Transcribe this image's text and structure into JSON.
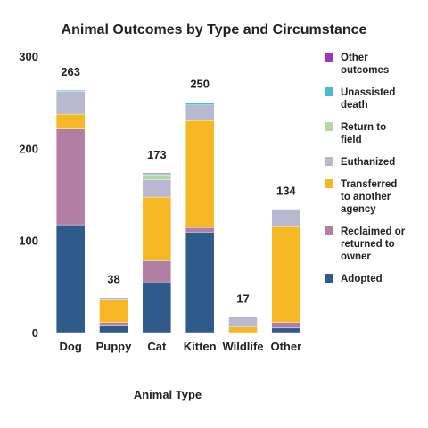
{
  "chart_data": {
    "type": "bar",
    "stacked": true,
    "title": "Animal Outcomes by Type and Circumstance",
    "xlabel": "Animal Type",
    "ylabel": "",
    "ylim": [
      0,
      300
    ],
    "yticks": [
      0,
      100,
      200,
      300
    ],
    "grid": false,
    "legend_position": "right",
    "categories": [
      "Dog",
      "Puppy",
      "Cat",
      "Kitten",
      "Wildlife",
      "Other"
    ],
    "totals": [
      263,
      38,
      173,
      250,
      17,
      134
    ],
    "series": [
      {
        "name": "Adopted",
        "color": "#2e5b8c",
        "values": [
          117,
          7,
          55,
          109,
          0,
          5
        ]
      },
      {
        "name": "Reclaimed or returned to owner",
        "color": "#b07fa3",
        "values": [
          104,
          4,
          23,
          5,
          0,
          6
        ]
      },
      {
        "name": "Transferred to another agency",
        "color": "#f5b724",
        "values": [
          16,
          25,
          69,
          116,
          6,
          104
        ]
      },
      {
        "name": "Euthanized",
        "color": "#b9b8d1",
        "values": [
          25,
          2,
          19,
          17,
          11,
          19
        ]
      },
      {
        "name": "Return to field",
        "color": "#b5d6a5",
        "values": [
          0,
          0,
          5,
          0,
          0,
          0
        ]
      },
      {
        "name": "Unassisted death",
        "color": "#46bfc9",
        "values": [
          1,
          0,
          1,
          3,
          0,
          0
        ]
      },
      {
        "name": "Other outcomes",
        "color": "#9d36bf",
        "values": [
          0,
          0,
          1,
          0,
          0,
          0
        ]
      }
    ]
  }
}
